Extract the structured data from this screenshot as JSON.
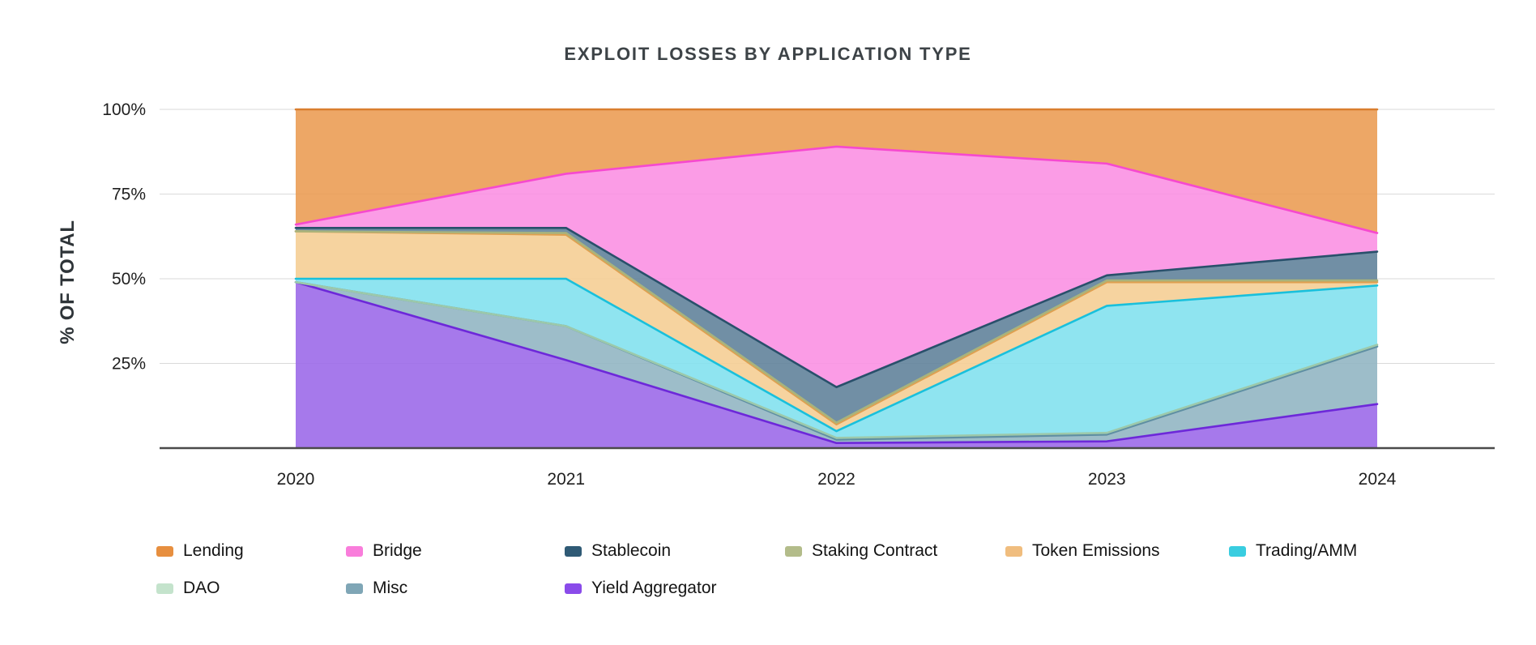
{
  "title": "EXPLOIT LOSSES BY APPLICATION TYPE",
  "y_axis_label": "% OF TOTAL",
  "chart_data": {
    "type": "area",
    "stacked": true,
    "percent": true,
    "x": [
      2020,
      2021,
      2022,
      2023,
      2024
    ],
    "ylim": [
      0,
      100
    ],
    "y_ticks": [
      "25%",
      "50%",
      "75%",
      "100%"
    ],
    "y_tick_values": [
      25,
      50,
      75,
      100
    ],
    "grid": "horizontal",
    "legend_position": "bottom",
    "legend": [
      "Lending",
      "Bridge",
      "Stablecoin",
      "Staking Contract",
      "Token Emissions",
      "Trading/AMM",
      "DAO",
      "Misc",
      "Yield Aggregator"
    ],
    "series": [
      {
        "name": "Yield Aggregator",
        "values": [
          49,
          26,
          1.5,
          2,
          13
        ],
        "fill": "#9a66e8",
        "line": "#6d28d9",
        "swatch": "#8a4bea"
      },
      {
        "name": "Misc",
        "values": [
          0,
          10,
          1,
          2,
          17
        ],
        "fill": "#90b4c2",
        "line": "#5f8fa3",
        "swatch": "#7fa6b6"
      },
      {
        "name": "DAO",
        "values": [
          0,
          0,
          0.5,
          0.5,
          0.5
        ],
        "fill": "#cde7d3",
        "line": "#9cc9ab",
        "swatch": "#c4e3cc"
      },
      {
        "name": "Trading/AMM",
        "values": [
          1,
          14,
          2,
          37.5,
          17.5
        ],
        "fill": "#7fe0ee",
        "line": "#19c0dc",
        "swatch": "#39cde0"
      },
      {
        "name": "Token Emissions",
        "values": [
          14,
          13,
          2,
          7,
          1
        ],
        "fill": "#f5cd92",
        "line": "#dfa050",
        "swatch": "#f0bd7e"
      },
      {
        "name": "Staking Contract",
        "values": [
          0,
          0.5,
          0.5,
          0.5,
          0.5
        ],
        "fill": "#c6cda2",
        "line": "#a9b37c",
        "swatch": "#b3bc8a"
      },
      {
        "name": "Stablecoin",
        "values": [
          1,
          1.5,
          10.5,
          1.5,
          8.5
        ],
        "fill": "#5d8099",
        "line": "#29506b",
        "swatch": "#2f5a75"
      },
      {
        "name": "Bridge",
        "values": [
          1,
          16,
          71,
          33,
          5.5
        ],
        "fill": "#fb8ee3",
        "line": "#f649cf",
        "swatch": "#f97ddb"
      },
      {
        "name": "Lending",
        "values": [
          34,
          19,
          11,
          16,
          36.5
        ],
        "fill": "#eb9b51",
        "line": "#d97e2e",
        "swatch": "#e78f3f"
      }
    ],
    "axis_color": "#4a4a4a",
    "gridline_color": "#dadada",
    "tick_label_color": "#1f1f1f"
  }
}
